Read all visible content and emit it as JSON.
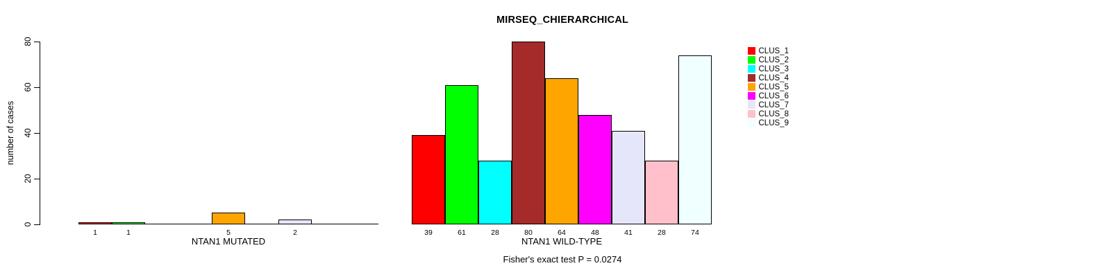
{
  "chart_data": {
    "type": "bar",
    "title": "MIRSEQ_CHIERARCHICAL",
    "ylabel": "number of cases",
    "ylim": [
      0,
      80
    ],
    "yticks": [
      0,
      20,
      40,
      60,
      80
    ],
    "grid": false,
    "legend_position": "right",
    "clusters": [
      "CLUS_1",
      "CLUS_2",
      "CLUS_3",
      "CLUS_4",
      "CLUS_5",
      "CLUS_6",
      "CLUS_7",
      "CLUS_8",
      "CLUS_9"
    ],
    "cluster_colors": [
      "#FF0000",
      "#00FF00",
      "#00FFFF",
      "#A52A2A",
      "#FFA500",
      "#FF00FF",
      "#E6E6FA",
      "#FFC0CB",
      "#F0FFFF"
    ],
    "panels": [
      {
        "xlabel": "NTAN1 MUTATED",
        "values": [
          1,
          1,
          0,
          0,
          5,
          0,
          2,
          0,
          0
        ]
      },
      {
        "xlabel": "NTAN1 WILD-TYPE",
        "values": [
          39,
          61,
          28,
          80,
          64,
          48,
          41,
          28,
          74
        ]
      }
    ],
    "annotation": "Fisher's exact test P = 0.0274"
  }
}
